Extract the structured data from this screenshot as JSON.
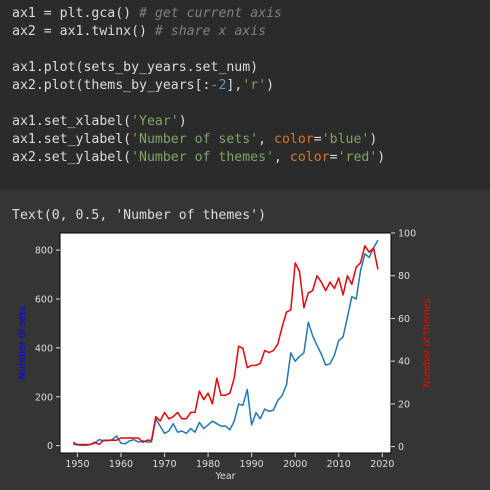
{
  "code": {
    "lines": [
      [
        {
          "t": "ax1 = plt.gca() ",
          "c": "plain"
        },
        {
          "t": "# get current axis",
          "c": "comment"
        }
      ],
      [
        {
          "t": "ax2 = ax1.twinx() ",
          "c": "plain"
        },
        {
          "t": "# share x axis",
          "c": "comment"
        }
      ],
      [],
      [
        {
          "t": "ax1.plot(sets_by_years.set_num)",
          "c": "plain"
        }
      ],
      [
        {
          "t": "ax2.plot(thems_by_years[:",
          "c": "plain"
        },
        {
          "t": "-2",
          "c": "number"
        },
        {
          "t": "],",
          "c": "plain"
        },
        {
          "t": "'r'",
          "c": "string"
        },
        {
          "t": ")",
          "c": "plain"
        }
      ],
      [],
      [
        {
          "t": "ax1.set_xlabel(",
          "c": "plain"
        },
        {
          "t": "'Year'",
          "c": "string"
        },
        {
          "t": ")",
          "c": "plain"
        }
      ],
      [
        {
          "t": "ax1.set_ylabel(",
          "c": "plain"
        },
        {
          "t": "'Number of sets'",
          "c": "string"
        },
        {
          "t": ", ",
          "c": "plain"
        },
        {
          "t": "color",
          "c": "kw"
        },
        {
          "t": "=",
          "c": "plain"
        },
        {
          "t": "'blue'",
          "c": "string"
        },
        {
          "t": ")",
          "c": "plain"
        }
      ],
      [
        {
          "t": "ax2.set_ylabel(",
          "c": "plain"
        },
        {
          "t": "'Number of themes'",
          "c": "string"
        },
        {
          "t": ", ",
          "c": "plain"
        },
        {
          "t": "color",
          "c": "kw"
        },
        {
          "t": "=",
          "c": "plain"
        },
        {
          "t": "'red'",
          "c": "string"
        },
        {
          "t": ")",
          "c": "plain"
        }
      ]
    ]
  },
  "output": {
    "text": "Text(0, 0.5, 'Number of themes')"
  },
  "colors": {
    "sets_line": "#1f77b4",
    "themes_line": "#e8000b",
    "left_label": "#0000ff",
    "right_label": "#ff0000"
  },
  "chart_data": {
    "type": "line",
    "xlabel": "Year",
    "ylabel_left": "Number of sets",
    "ylabel_right": "Number of themes",
    "xlim": [
      1946,
      2022
    ],
    "ylim_left": [
      -30,
      870
    ],
    "ylim_right": [
      -3,
      100
    ],
    "xticks": [
      1950,
      1960,
      1970,
      1980,
      1990,
      2000,
      2010,
      2020
    ],
    "yticks_left": [
      0,
      200,
      400,
      600,
      800
    ],
    "yticks_right": [
      0,
      20,
      40,
      60,
      80,
      100
    ],
    "series": [
      {
        "name": "sets",
        "axis": "left",
        "x": [
          1949,
          1950,
          1951,
          1952,
          1953,
          1954,
          1955,
          1956,
          1957,
          1958,
          1959,
          1960,
          1961,
          1962,
          1963,
          1964,
          1965,
          1966,
          1967,
          1968,
          1969,
          1970,
          1971,
          1972,
          1973,
          1974,
          1975,
          1976,
          1977,
          1978,
          1979,
          1980,
          1981,
          1982,
          1983,
          1984,
          1985,
          1986,
          1987,
          1988,
          1989,
          1990,
          1991,
          1992,
          1993,
          1994,
          1995,
          1996,
          1997,
          1998,
          1999,
          2000,
          2001,
          2002,
          2003,
          2004,
          2005,
          2006,
          2007,
          2008,
          2009,
          2010,
          2011,
          2012,
          2013,
          2014,
          2015,
          2016,
          2017,
          2018,
          2019
        ],
        "values": [
          5,
          3,
          1,
          2,
          5,
          10,
          25,
          20,
          20,
          25,
          40,
          10,
          8,
          20,
          25,
          15,
          20,
          15,
          15,
          110,
          80,
          50,
          60,
          90,
          55,
          60,
          50,
          70,
          55,
          95,
          70,
          85,
          100,
          90,
          80,
          80,
          65,
          100,
          170,
          165,
          230,
          85,
          135,
          110,
          150,
          140,
          145,
          185,
          205,
          250,
          380,
          345,
          365,
          380,
          505,
          450,
          410,
          375,
          330,
          335,
          370,
          430,
          445,
          525,
          610,
          600,
          715,
          785,
          770,
          810,
          840
        ]
      },
      {
        "name": "themes",
        "axis": "right",
        "x": [
          1949,
          1950,
          1951,
          1952,
          1953,
          1954,
          1955,
          1956,
          1957,
          1958,
          1959,
          1960,
          1961,
          1962,
          1963,
          1964,
          1965,
          1966,
          1967,
          1968,
          1969,
          1970,
          1971,
          1972,
          1973,
          1974,
          1975,
          1976,
          1977,
          1978,
          1979,
          1980,
          1981,
          1982,
          1983,
          1984,
          1985,
          1986,
          1987,
          1988,
          1989,
          1990,
          1991,
          1992,
          1993,
          1994,
          1995,
          1996,
          1997,
          1998,
          1999,
          2000,
          2001,
          2002,
          2003,
          2004,
          2005,
          2006,
          2007,
          2008,
          2009,
          2010,
          2011,
          2012,
          2013,
          2014,
          2015,
          2016,
          2017,
          2018,
          2019
        ],
        "values": [
          2,
          1,
          1,
          1,
          1,
          2,
          1,
          3,
          3,
          3,
          3,
          4,
          4,
          4,
          4,
          4,
          2,
          3,
          3,
          14,
          12,
          16,
          13,
          14,
          16,
          13,
          13,
          16,
          16,
          26,
          22,
          25,
          20,
          32,
          24,
          24,
          25,
          32,
          47,
          46,
          37,
          38,
          38,
          39,
          45,
          44,
          45,
          48,
          56,
          63,
          64,
          86,
          82,
          65,
          72,
          73,
          80,
          77,
          73,
          77,
          74,
          79,
          71,
          80,
          76,
          84,
          86,
          94,
          91,
          93,
          83
        ]
      }
    ]
  }
}
